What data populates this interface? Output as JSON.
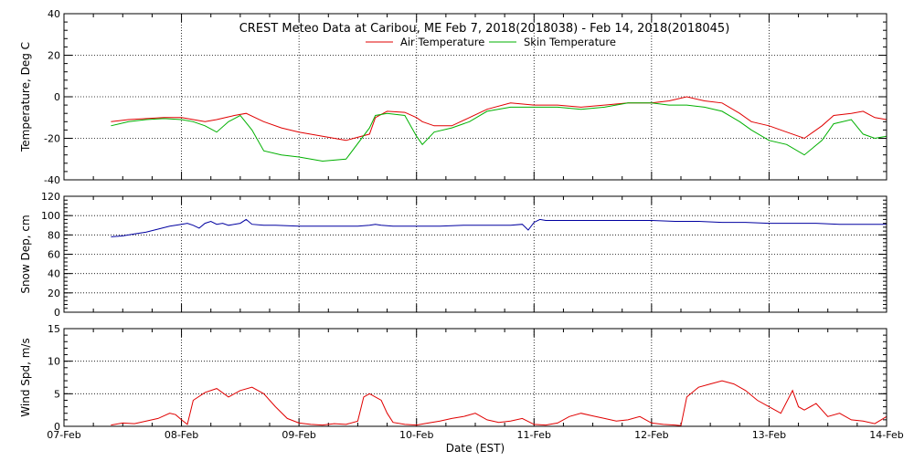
{
  "title": "CREST Meteo Data at Caribou, ME   Feb  7, 2018(2018038) - Feb 14, 2018(2018045)",
  "colors": {
    "air": "#e00000",
    "skin": "#00b000",
    "snow": "#0000a0",
    "wind": "#e00000",
    "axis": "#000000",
    "grid": "#000000"
  },
  "chart_data": [
    {
      "type": "line",
      "ylabel": "Temperature, Deg C",
      "ylim": [
        -40,
        40
      ],
      "yticks": [
        "-40",
        "-20",
        "0",
        "20",
        "40"
      ],
      "xlim": [
        0,
        7
      ],
      "grid": "vertical dotted at day boundaries",
      "legend": "top-center",
      "series": [
        {
          "name": "Air Temperature",
          "color": "#e00000",
          "x": [
            0.4,
            0.55,
            0.7,
            0.85,
            1.0,
            1.1,
            1.2,
            1.3,
            1.45,
            1.55,
            1.7,
            1.85,
            2.0,
            2.2,
            2.4,
            2.6,
            2.65,
            2.75,
            2.9,
            3.0,
            3.05,
            3.15,
            3.3,
            3.45,
            3.6,
            3.8,
            4.0,
            4.2,
            4.4,
            4.6,
            4.8,
            5.0,
            5.15,
            5.3,
            5.45,
            5.6,
            5.75,
            5.85,
            6.0,
            6.15,
            6.3,
            6.45,
            6.55,
            6.7,
            6.8,
            6.9,
            7.0
          ],
          "y": [
            -12,
            -11,
            -10.5,
            -10,
            -10,
            -11,
            -12,
            -11,
            -9,
            -8,
            -12,
            -15,
            -17,
            -19,
            -21,
            -18,
            -10,
            -7,
            -7.5,
            -10,
            -12,
            -14,
            -14,
            -10,
            -6,
            -3,
            -4,
            -4,
            -5,
            -4,
            -3,
            -3,
            -2,
            0,
            -2,
            -3,
            -8,
            -12,
            -14,
            -17,
            -20,
            -14,
            -9,
            -8,
            -7,
            -10,
            -11
          ]
        },
        {
          "name": "Skin Temperature",
          "color": "#00b000",
          "x": [
            0.4,
            0.55,
            0.7,
            0.85,
            1.0,
            1.1,
            1.2,
            1.3,
            1.4,
            1.5,
            1.6,
            1.7,
            1.85,
            2.0,
            2.2,
            2.4,
            2.6,
            2.65,
            2.75,
            2.9,
            3.0,
            3.05,
            3.15,
            3.3,
            3.45,
            3.6,
            3.8,
            4.0,
            4.2,
            4.4,
            4.6,
            4.8,
            5.0,
            5.15,
            5.3,
            5.45,
            5.6,
            5.75,
            5.85,
            6.0,
            6.15,
            6.3,
            6.45,
            6.55,
            6.7,
            6.8,
            6.9,
            7.0
          ],
          "y": [
            -14,
            -12,
            -11,
            -10.5,
            -11,
            -12,
            -14,
            -17,
            -12,
            -9,
            -16,
            -26,
            -28,
            -29,
            -31,
            -30,
            -15,
            -9,
            -8,
            -9,
            -19,
            -23,
            -17,
            -15,
            -12,
            -7,
            -5,
            -5,
            -5,
            -6,
            -5,
            -3,
            -3,
            -4,
            -4,
            -5,
            -7,
            -12,
            -16,
            -21,
            -23,
            -28,
            -21,
            -13,
            -11,
            -18,
            -20,
            -19
          ]
        }
      ]
    },
    {
      "type": "line",
      "ylabel": "Snow Dep, cm",
      "ylim": [
        0,
        120
      ],
      "yticks": [
        "0",
        "20",
        "40",
        "60",
        "80",
        "100",
        "120"
      ],
      "xlim": [
        0,
        7
      ],
      "grid": "vertical dotted at day boundaries",
      "series": [
        {
          "color": "#0000a0",
          "x": [
            0.4,
            0.5,
            0.6,
            0.7,
            0.8,
            0.9,
            1.0,
            1.05,
            1.1,
            1.15,
            1.2,
            1.25,
            1.3,
            1.35,
            1.4,
            1.5,
            1.55,
            1.6,
            1.7,
            1.8,
            2.0,
            2.2,
            2.4,
            2.5,
            2.6,
            2.65,
            2.7,
            2.8,
            3.0,
            3.2,
            3.4,
            3.6,
            3.8,
            3.9,
            3.95,
            4.0,
            4.05,
            4.1,
            4.2,
            4.4,
            4.6,
            4.8,
            5.0,
            5.2,
            5.4,
            5.6,
            5.8,
            6.0,
            6.2,
            6.4,
            6.6,
            6.8,
            7.0
          ],
          "y": [
            78,
            79,
            81,
            83,
            86,
            89,
            91,
            92,
            90,
            87,
            92,
            94,
            91,
            92,
            90,
            92,
            96,
            91,
            90,
            90,
            89,
            89,
            89,
            89,
            90,
            91,
            90,
            89,
            89,
            89,
            90,
            90,
            90,
            91,
            85,
            93,
            96,
            95,
            95,
            95,
            95,
            95,
            95,
            94,
            94,
            93,
            93,
            92,
            92,
            92,
            91,
            91,
            91
          ]
        }
      ]
    },
    {
      "type": "line",
      "ylabel": "Wind Spd, m/s",
      "ylim": [
        0,
        15
      ],
      "yticks": [
        "0",
        "5",
        "10",
        "15"
      ],
      "xlim": [
        0,
        7
      ],
      "xticks": [
        "07-Feb",
        "08-Feb",
        "09-Feb",
        "10-Feb",
        "11-Feb",
        "12-Feb",
        "13-Feb",
        "14-Feb"
      ],
      "xlabel": "Date (EST)",
      "grid": "vertical dotted at day boundaries",
      "series": [
        {
          "color": "#e00000",
          "x": [
            0.4,
            0.5,
            0.6,
            0.7,
            0.8,
            0.9,
            0.95,
            1.0,
            1.05,
            1.1,
            1.2,
            1.3,
            1.4,
            1.5,
            1.6,
            1.7,
            1.8,
            1.9,
            2.0,
            2.1,
            2.2,
            2.3,
            2.4,
            2.5,
            2.55,
            2.6,
            2.7,
            2.75,
            2.8,
            2.9,
            3.0,
            3.1,
            3.2,
            3.3,
            3.4,
            3.5,
            3.6,
            3.7,
            3.8,
            3.9,
            4.0,
            4.1,
            4.2,
            4.3,
            4.4,
            4.5,
            4.6,
            4.7,
            4.8,
            4.9,
            5.0,
            5.1,
            5.2,
            5.25,
            5.3,
            5.4,
            5.5,
            5.6,
            5.7,
            5.8,
            5.9,
            6.0,
            6.1,
            6.2,
            6.25,
            6.3,
            6.4,
            6.5,
            6.6,
            6.7,
            6.8,
            6.9,
            7.0
          ],
          "y": [
            0.2,
            0.5,
            0.4,
            0.8,
            1.2,
            2.0,
            1.8,
            1.0,
            0.3,
            4.0,
            5.2,
            5.8,
            4.5,
            5.5,
            6.0,
            5.0,
            3.0,
            1.2,
            0.5,
            0.3,
            0.2,
            0.4,
            0.3,
            0.8,
            4.5,
            5.0,
            4.0,
            2.0,
            0.6,
            0.3,
            0.2,
            0.5,
            0.8,
            1.2,
            1.5,
            2.0,
            1.0,
            0.6,
            0.8,
            1.2,
            0.3,
            0.2,
            0.5,
            1.5,
            2.0,
            1.6,
            1.2,
            0.8,
            1.0,
            1.5,
            0.5,
            0.3,
            0.2,
            0.1,
            4.5,
            6.0,
            6.5,
            7.0,
            6.5,
            5.5,
            4.0,
            3.0,
            2.0,
            5.5,
            3.0,
            2.5,
            3.5,
            1.5,
            2.0,
            1.0,
            0.8,
            0.4,
            1.5
          ]
        }
      ]
    }
  ]
}
